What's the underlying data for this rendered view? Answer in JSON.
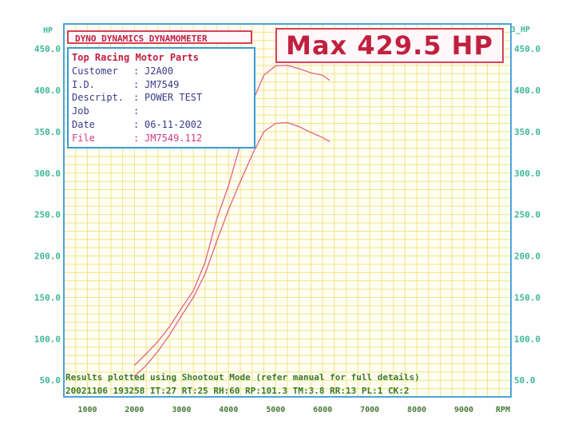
{
  "header": {
    "brand": "DYNO DYNAMICS DYNAMOMETER",
    "max_label": "Max 429.5 HP"
  },
  "info": {
    "company": "Top Racing Motor Parts",
    "rows": [
      {
        "key": "Customer",
        "value": "J2A00"
      },
      {
        "key": "I.D.",
        "value": "JM7549"
      },
      {
        "key": "Descript.",
        "value": "POWER TEST"
      },
      {
        "key": "Job",
        "value": ""
      },
      {
        "key": "Date",
        "value": "06-11-2002"
      },
      {
        "key": "File",
        "value": "JM7549.112"
      }
    ]
  },
  "footer": {
    "line1": "Results plotted using Shootout Mode (refer manual for full details)",
    "line2": "20021106 193258 IT:27 RT:25 RH:60 RP:101.3 TM:3.8 RR:13 PL:1 CK:2"
  },
  "colors": {
    "grid": "#f2e38a",
    "frame": "#4aa3dd",
    "curve": "#e0608c",
    "axis_text": "#3fb89a"
  },
  "chart_data": {
    "type": "line",
    "xlabel": "RPM",
    "ylabel_left": "HP",
    "ylabel_right": "3_HP",
    "xlim": [
      500,
      10000
    ],
    "ylim": [
      30,
      480
    ],
    "x_ticks": [
      1000,
      2000,
      3000,
      4000,
      5000,
      6000,
      7000,
      8000,
      9000
    ],
    "x_tick_labels": [
      "1000",
      "2000",
      "3000",
      "4000",
      "5000",
      "6000",
      "7000",
      "8000",
      "9000"
    ],
    "y_ticks": [
      50,
      100,
      150,
      200,
      250,
      300,
      350,
      400,
      450
    ],
    "y_tick_labels": [
      "50.0",
      "100.0",
      "150.0",
      "200.0",
      "250.0",
      "300.0",
      "350.0",
      "400.0",
      "450.0"
    ],
    "grid": true,
    "series": [
      {
        "values": [
          [
            2000,
            68
          ],
          [
            2250,
            82
          ],
          [
            2500,
            97
          ],
          [
            2750,
            115
          ],
          [
            3000,
            137
          ],
          [
            3250,
            158
          ],
          [
            3500,
            192
          ],
          [
            3750,
            245
          ],
          [
            4000,
            285
          ],
          [
            4250,
            335
          ],
          [
            4500,
            385
          ],
          [
            4750,
            418
          ],
          [
            5000,
            429.5
          ],
          [
            5250,
            430
          ],
          [
            5500,
            426
          ],
          [
            5750,
            421
          ],
          [
            6000,
            418
          ],
          [
            6150,
            412
          ]
        ]
      },
      {
        "values": [
          [
            2000,
            55
          ],
          [
            2250,
            68
          ],
          [
            2500,
            85
          ],
          [
            2750,
            105
          ],
          [
            3000,
            128
          ],
          [
            3250,
            150
          ],
          [
            3500,
            178
          ],
          [
            3750,
            218
          ],
          [
            4000,
            256
          ],
          [
            4250,
            290
          ],
          [
            4500,
            322
          ],
          [
            4750,
            350
          ],
          [
            5000,
            360
          ],
          [
            5250,
            361
          ],
          [
            5500,
            356
          ],
          [
            5750,
            349
          ],
          [
            6000,
            343
          ],
          [
            6150,
            338
          ]
        ]
      }
    ]
  }
}
